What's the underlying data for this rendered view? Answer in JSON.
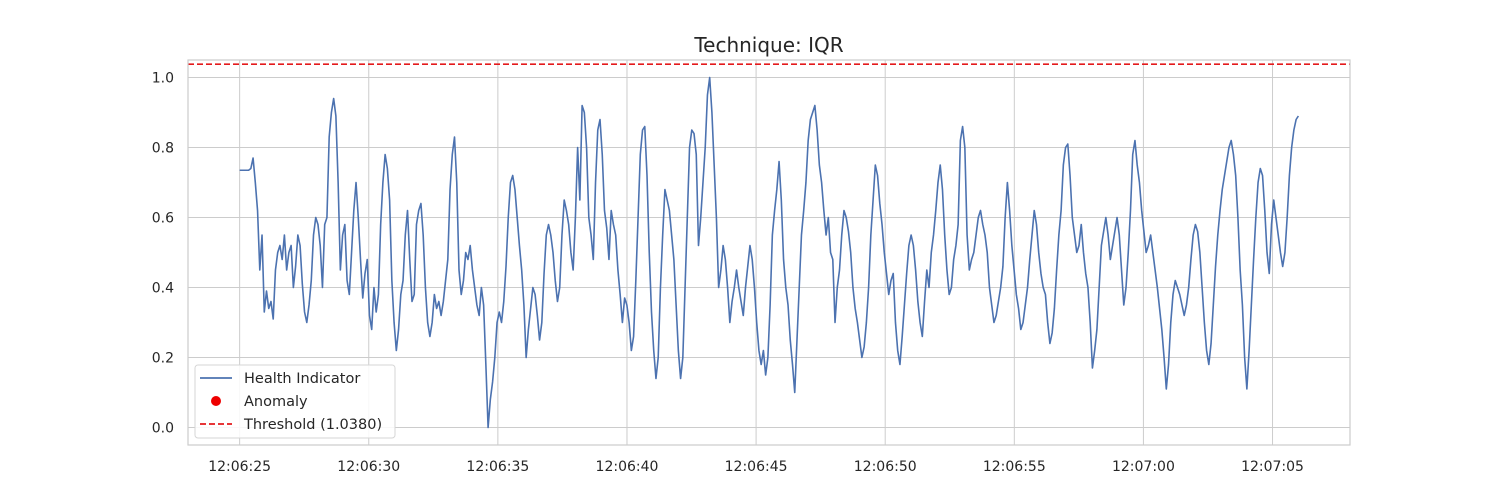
{
  "chart_data": {
    "type": "line",
    "title": "Technique: IQR",
    "xlabel": "",
    "ylabel": "",
    "x_range": [
      "12:06:23",
      "12:07:08"
    ],
    "ylim": [
      -0.05,
      1.05
    ],
    "x_ticks": [
      "12:06:25",
      "12:06:30",
      "12:06:35",
      "12:06:40",
      "12:06:45",
      "12:06:50",
      "12:06:55",
      "12:07:00",
      "12:07:05"
    ],
    "y_ticks": [
      "0.0",
      "0.2",
      "0.4",
      "0.6",
      "0.8",
      "1.0"
    ],
    "grid": true,
    "legend_position": "lower-left",
    "series": [
      {
        "name": "Health Indicator",
        "color": "#4c72b0",
        "style": "solid",
        "start_time": "12:06:25.0",
        "end_time": "12:07:06.0",
        "values": [
          0.735,
          0.735,
          0.735,
          0.735,
          0.735,
          0.74,
          0.77,
          0.7,
          0.62,
          0.45,
          0.55,
          0.33,
          0.39,
          0.34,
          0.36,
          0.31,
          0.45,
          0.5,
          0.52,
          0.48,
          0.55,
          0.45,
          0.5,
          0.52,
          0.4,
          0.46,
          0.55,
          0.52,
          0.41,
          0.33,
          0.3,
          0.35,
          0.42,
          0.55,
          0.6,
          0.58,
          0.52,
          0.4,
          0.58,
          0.6,
          0.83,
          0.9,
          0.94,
          0.89,
          0.7,
          0.45,
          0.55,
          0.58,
          0.42,
          0.38,
          0.5,
          0.62,
          0.7,
          0.6,
          0.48,
          0.37,
          0.44,
          0.48,
          0.32,
          0.28,
          0.4,
          0.33,
          0.38,
          0.58,
          0.7,
          0.78,
          0.74,
          0.65,
          0.42,
          0.3,
          0.22,
          0.28,
          0.38,
          0.42,
          0.55,
          0.62,
          0.48,
          0.36,
          0.38,
          0.58,
          0.62,
          0.64,
          0.55,
          0.4,
          0.3,
          0.26,
          0.3,
          0.38,
          0.34,
          0.36,
          0.32,
          0.36,
          0.42,
          0.48,
          0.68,
          0.78,
          0.83,
          0.7,
          0.45,
          0.38,
          0.42,
          0.5,
          0.48,
          0.52,
          0.45,
          0.4,
          0.35,
          0.32,
          0.4,
          0.35,
          0.18,
          0.0,
          0.08,
          0.13,
          0.2,
          0.3,
          0.33,
          0.3,
          0.36,
          0.46,
          0.6,
          0.7,
          0.72,
          0.68,
          0.6,
          0.52,
          0.45,
          0.35,
          0.2,
          0.28,
          0.34,
          0.4,
          0.38,
          0.32,
          0.25,
          0.3,
          0.44,
          0.55,
          0.58,
          0.55,
          0.5,
          0.42,
          0.36,
          0.4,
          0.55,
          0.65,
          0.62,
          0.58,
          0.5,
          0.45,
          0.6,
          0.8,
          0.65,
          0.92,
          0.9,
          0.8,
          0.6,
          0.55,
          0.48,
          0.7,
          0.85,
          0.88,
          0.78,
          0.62,
          0.57,
          0.48,
          0.62,
          0.58,
          0.55,
          0.45,
          0.38,
          0.3,
          0.37,
          0.35,
          0.3,
          0.22,
          0.26,
          0.42,
          0.6,
          0.78,
          0.85,
          0.86,
          0.72,
          0.5,
          0.33,
          0.22,
          0.14,
          0.2,
          0.4,
          0.55,
          0.68,
          0.65,
          0.62,
          0.55,
          0.48,
          0.35,
          0.22,
          0.14,
          0.2,
          0.4,
          0.6,
          0.8,
          0.85,
          0.84,
          0.78,
          0.52,
          0.6,
          0.7,
          0.8,
          0.95,
          1.0,
          0.9,
          0.75,
          0.6,
          0.4,
          0.45,
          0.52,
          0.48,
          0.4,
          0.3,
          0.36,
          0.4,
          0.45,
          0.4,
          0.36,
          0.32,
          0.4,
          0.46,
          0.52,
          0.48,
          0.4,
          0.3,
          0.22,
          0.18,
          0.22,
          0.15,
          0.2,
          0.35,
          0.55,
          0.62,
          0.68,
          0.76,
          0.65,
          0.48,
          0.4,
          0.35,
          0.25,
          0.18,
          0.1,
          0.25,
          0.4,
          0.55,
          0.62,
          0.7,
          0.82,
          0.88,
          0.9,
          0.92,
          0.85,
          0.75,
          0.7,
          0.62,
          0.55,
          0.6,
          0.5,
          0.48,
          0.3,
          0.4,
          0.45,
          0.55,
          0.62,
          0.6,
          0.56,
          0.5,
          0.4,
          0.34,
          0.3,
          0.25,
          0.2,
          0.23,
          0.3,
          0.4,
          0.55,
          0.65,
          0.75,
          0.72,
          0.64,
          0.58,
          0.5,
          0.44,
          0.38,
          0.42,
          0.44,
          0.3,
          0.22,
          0.18,
          0.26,
          0.35,
          0.44,
          0.52,
          0.55,
          0.52,
          0.45,
          0.36,
          0.3,
          0.26,
          0.36,
          0.45,
          0.4,
          0.5,
          0.55,
          0.62,
          0.7,
          0.75,
          0.68,
          0.55,
          0.45,
          0.38,
          0.4,
          0.48,
          0.52,
          0.58,
          0.82,
          0.86,
          0.8,
          0.55,
          0.45,
          0.48,
          0.5,
          0.55,
          0.6,
          0.62,
          0.58,
          0.55,
          0.5,
          0.4,
          0.35,
          0.3,
          0.32,
          0.36,
          0.4,
          0.46,
          0.6,
          0.7,
          0.62,
          0.52,
          0.45,
          0.38,
          0.34,
          0.28,
          0.3,
          0.35,
          0.4,
          0.48,
          0.55,
          0.62,
          0.58,
          0.5,
          0.44,
          0.4,
          0.38,
          0.3,
          0.24,
          0.27,
          0.34,
          0.45,
          0.55,
          0.62,
          0.75,
          0.8,
          0.81,
          0.72,
          0.6,
          0.55,
          0.5,
          0.52,
          0.58,
          0.5,
          0.44,
          0.4,
          0.3,
          0.17,
          0.22,
          0.28,
          0.4,
          0.52,
          0.56,
          0.6,
          0.55,
          0.48,
          0.52,
          0.56,
          0.6,
          0.55,
          0.45,
          0.35,
          0.4,
          0.5,
          0.62,
          0.78,
          0.82,
          0.75,
          0.7,
          0.62,
          0.56,
          0.5,
          0.52,
          0.55,
          0.5,
          0.45,
          0.4,
          0.34,
          0.28,
          0.2,
          0.11,
          0.18,
          0.3,
          0.38,
          0.42,
          0.4,
          0.38,
          0.35,
          0.32,
          0.35,
          0.4,
          0.48,
          0.55,
          0.58,
          0.56,
          0.5,
          0.4,
          0.3,
          0.22,
          0.18,
          0.24,
          0.35,
          0.46,
          0.55,
          0.62,
          0.68,
          0.72,
          0.76,
          0.8,
          0.82,
          0.78,
          0.72,
          0.6,
          0.45,
          0.35,
          0.2,
          0.11,
          0.22,
          0.35,
          0.48,
          0.6,
          0.7,
          0.74,
          0.72,
          0.62,
          0.5,
          0.44,
          0.58,
          0.65,
          0.6,
          0.55,
          0.5,
          0.46,
          0.5,
          0.6,
          0.72,
          0.8,
          0.85,
          0.88,
          0.89
        ]
      },
      {
        "name": "Threshold (1.0380)",
        "color": "#e41a1c",
        "style": "dashed",
        "value": 1.038
      },
      {
        "name": "Anomaly",
        "color": "#ee0000",
        "style": "marker",
        "values": []
      }
    ]
  }
}
